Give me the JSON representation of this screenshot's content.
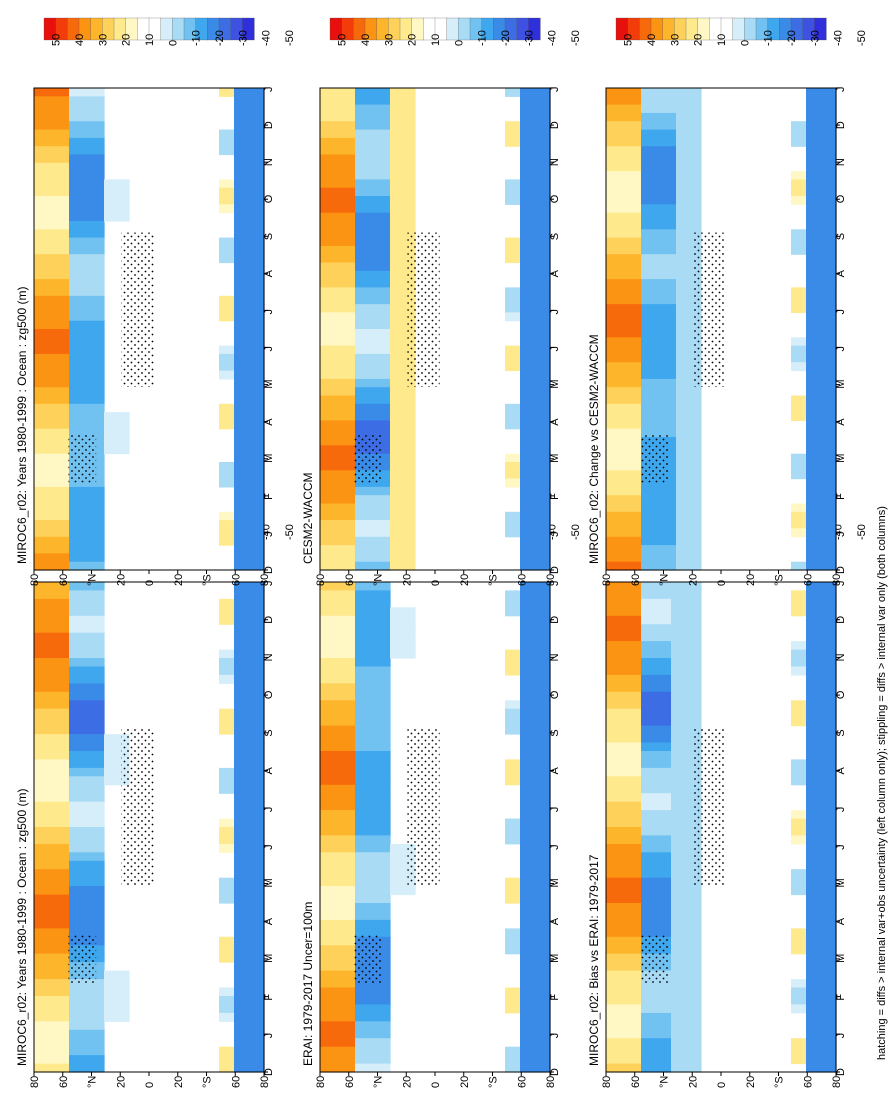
{
  "figure": {
    "footnote": "hatching = diffs > internal var+obs uncertainty (left column only); stippling = diffs > internal var only (both columns)"
  },
  "colorbar": {
    "labels": [
      "50",
      "40",
      "30",
      "20",
      "10",
      "0",
      "-10",
      "-20",
      "-30",
      "-40",
      "-50"
    ],
    "colors": [
      "#e8100c",
      "#f23d0a",
      "#f76a0c",
      "#fb9412",
      "#fdb52c",
      "#fed15b",
      "#fee98d",
      "#fff8c5",
      "#ffffff",
      "#ffffff",
      "#d6eef9",
      "#a9dbf5",
      "#72c2f1",
      "#3fa7ed",
      "#3a8ae8",
      "#3d6de4",
      "#3f51e0",
      "#2f2fdb"
    ]
  },
  "chart_data": [
    {
      "type": "heatmap",
      "title": "MIROC6_r02: Years 1980-1999 : Ocean : zg500 (m)",
      "x_ticks": [
        "D",
        "J",
        "F",
        "M",
        "A",
        "M",
        "J",
        "J",
        "A",
        "S",
        "O",
        "N",
        "D",
        "J"
      ],
      "y_ticks": [
        "80",
        "60",
        "°N",
        "20",
        "0",
        "20",
        "°S",
        "60",
        "80"
      ],
      "stippling": true
    },
    {
      "type": "heatmap",
      "title": "MIROC6_r02: Years 1980-1999 : Ocean : zg500 (m)",
      "x_ticks": [
        "D",
        "J",
        "F",
        "M",
        "A",
        "M",
        "J",
        "J",
        "A",
        "S",
        "O",
        "N",
        "D",
        "J"
      ],
      "y_ticks": [
        "80",
        "60",
        "°N",
        "20",
        "0",
        "20",
        "°S",
        "60",
        "80"
      ],
      "stippling": true
    },
    {
      "type": "heatmap",
      "title": "ERAI: 1979-2017 Uncer=100m",
      "x_ticks": [
        "D",
        "J",
        "F",
        "M",
        "A",
        "M",
        "J",
        "J",
        "A",
        "S",
        "O",
        "N",
        "D",
        "J"
      ],
      "y_ticks": [
        "80",
        "60",
        "°N",
        "20",
        "0",
        "20",
        "°S",
        "60",
        "80"
      ],
      "stippling": true
    },
    {
      "type": "heatmap",
      "title": "CESM2-WACCM",
      "x_ticks": [
        "D",
        "J",
        "F",
        "M",
        "A",
        "M",
        "J",
        "J",
        "A",
        "S",
        "O",
        "N",
        "D",
        "J"
      ],
      "y_ticks": [
        "80",
        "60",
        "°N",
        "20",
        "0",
        "20",
        "°S",
        "60",
        "80"
      ],
      "stippling": true
    },
    {
      "type": "heatmap",
      "title": "MIROC6_r02: Bias vs ERAI: 1979-2017",
      "x_ticks": [
        "D",
        "J",
        "F",
        "M",
        "A",
        "M",
        "J",
        "J",
        "A",
        "S",
        "O",
        "N",
        "D",
        "J"
      ],
      "y_ticks": [
        "80",
        "60",
        "°N",
        "20",
        "0",
        "20",
        "°S",
        "60",
        "80"
      ],
      "stippling": true
    },
    {
      "type": "heatmap",
      "title": "MIROC6_r02: Change vs CESM2-WACCM",
      "x_ticks": [
        "D",
        "J",
        "F",
        "M",
        "A",
        "M",
        "J",
        "J",
        "A",
        "S",
        "O",
        "N",
        "D",
        "J"
      ],
      "y_ticks": [
        "80",
        "60",
        "°N",
        "20",
        "0",
        "20",
        "°S",
        "60",
        "80"
      ],
      "stippling": true
    }
  ]
}
